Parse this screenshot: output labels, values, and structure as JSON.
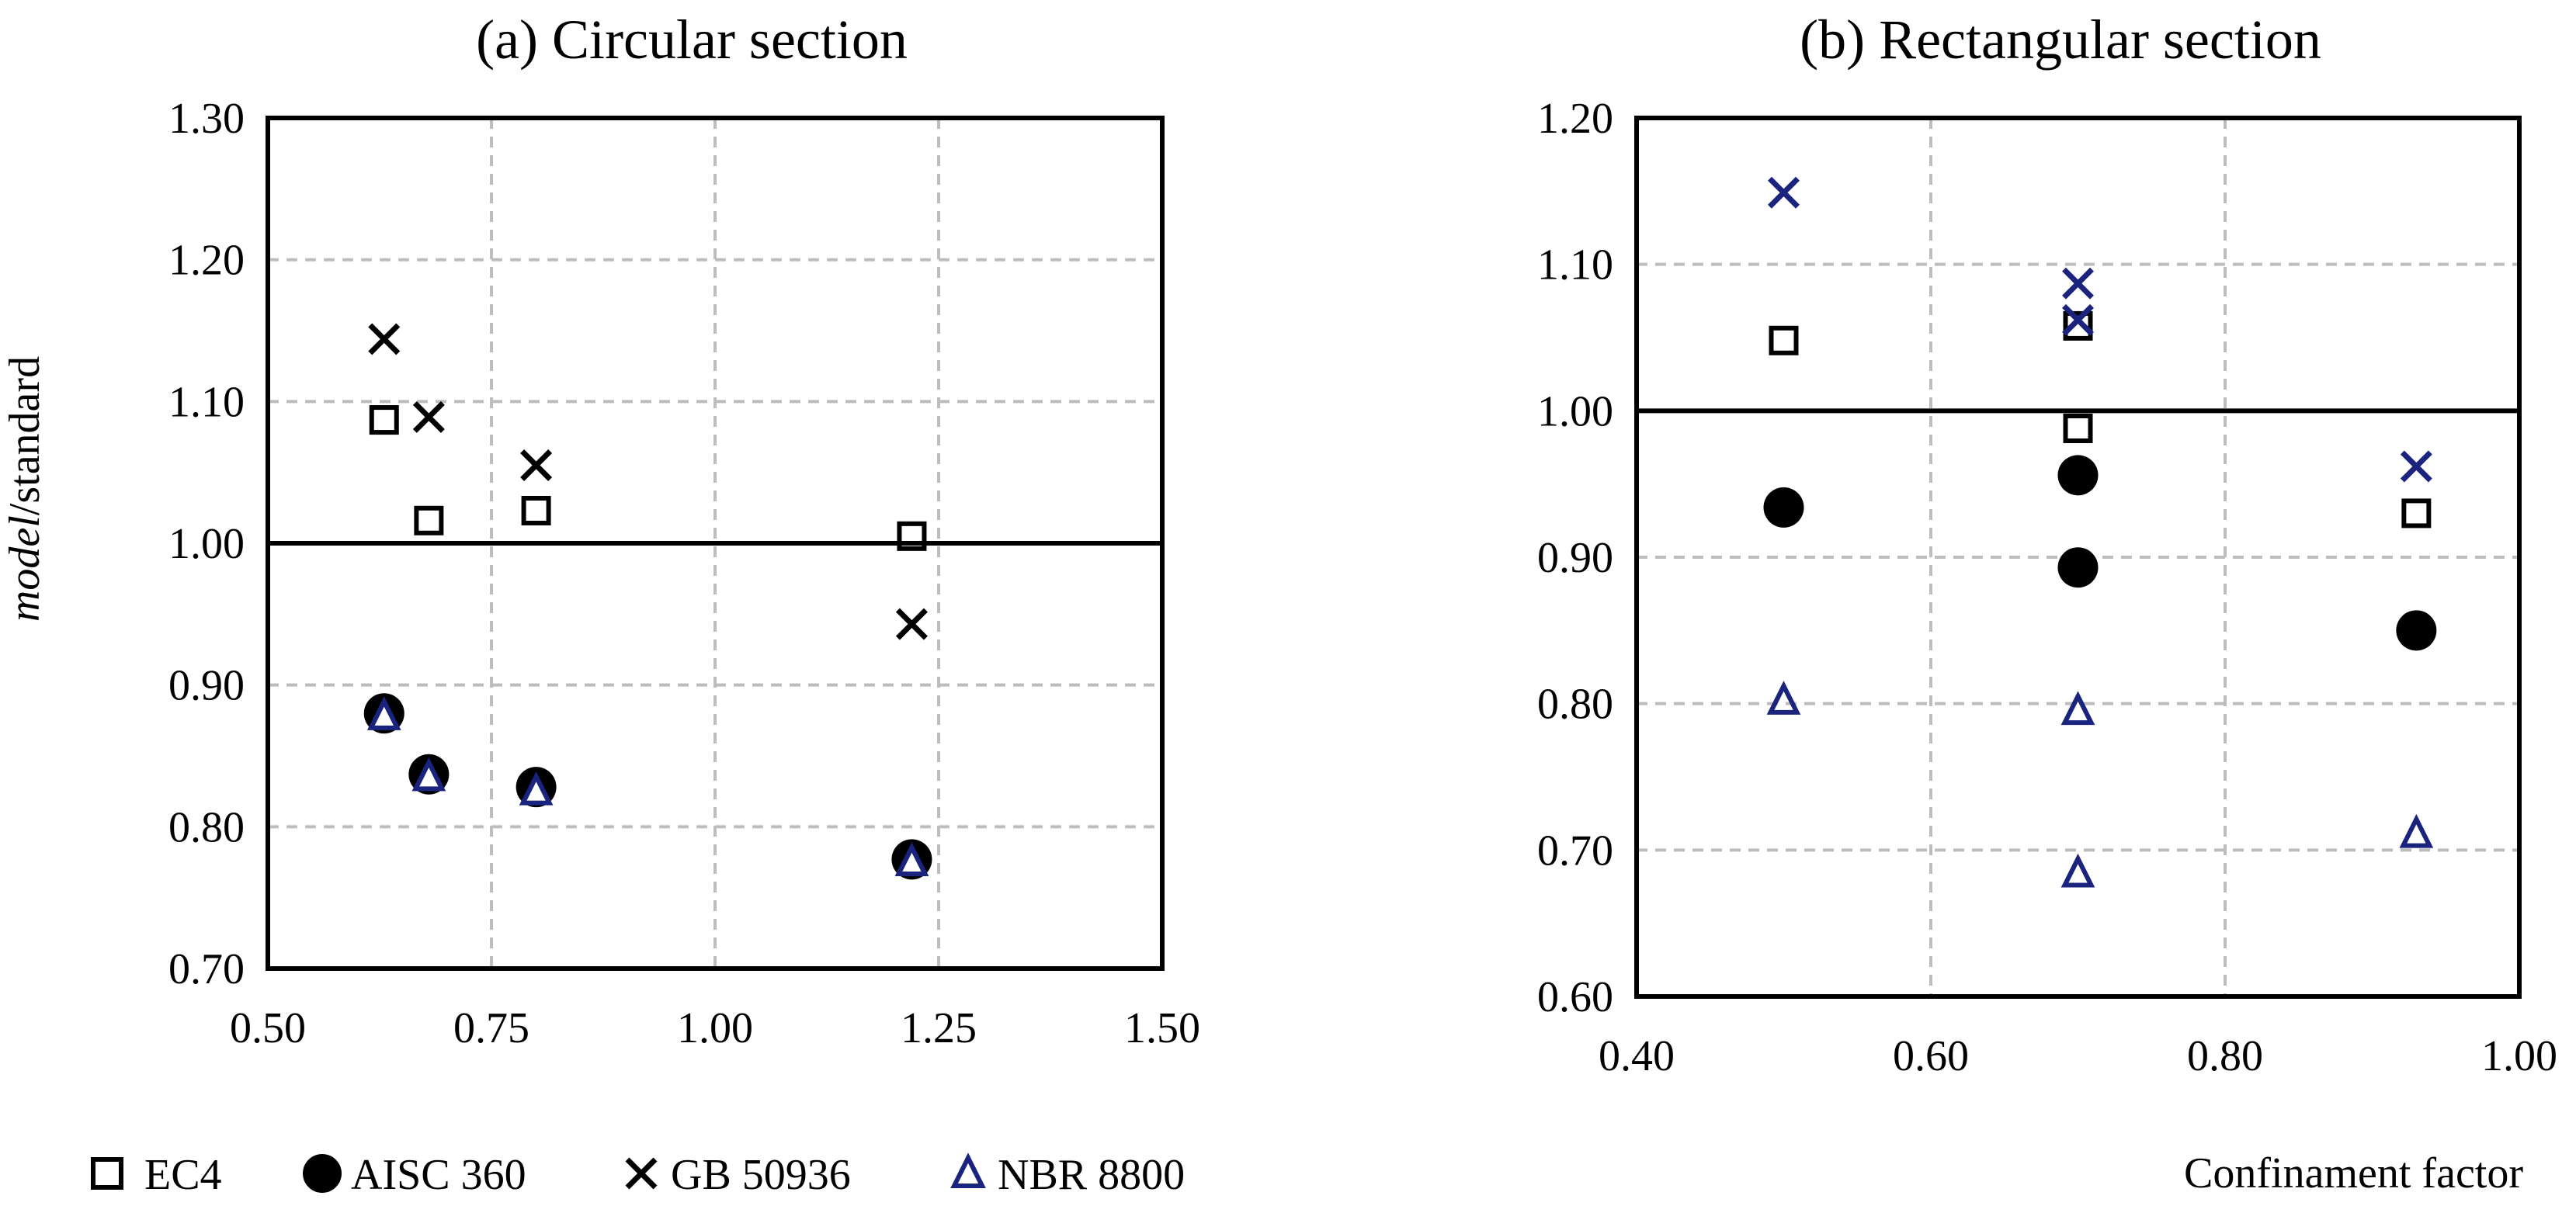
{
  "colors": {
    "ec4": "#000000",
    "aisc": "#000000",
    "gb_circ": "#000000",
    "gb_rect": "#1a237e",
    "nbr": "#1a237e",
    "grid": "#bdbdbd",
    "reference_line": "#000000"
  },
  "legend": {
    "items": [
      {
        "key": "ec4",
        "label": "EC4",
        "marker": "square-open"
      },
      {
        "key": "aisc",
        "label": "AISC 360",
        "marker": "circle-filled"
      },
      {
        "key": "gb",
        "label": "GB 50936",
        "marker": "x-cross"
      },
      {
        "key": "nbr",
        "label": "NBR 8800",
        "marker": "triangle-open"
      }
    ]
  },
  "shared_xlabel": "Confinament factor",
  "chart_data": [
    {
      "type": "scatter",
      "title": "(a) Circular section",
      "xlabel": "",
      "ylabel_italic": "model",
      "ylabel_rest": "/standard",
      "xlim": [
        0.5,
        1.5
      ],
      "ylim": [
        0.7,
        1.3
      ],
      "xticks": [
        0.5,
        0.75,
        1.0,
        1.25,
        1.5
      ],
      "xtick_labels": [
        "0.50",
        "0.75",
        "1.00",
        "1.25",
        "1.50"
      ],
      "yticks": [
        0.7,
        0.8,
        0.9,
        1.0,
        1.1,
        1.2,
        1.3
      ],
      "ytick_labels": [
        "0.70",
        "0.80",
        "0.90",
        "1.00",
        "1.10",
        "1.20",
        "1.30"
      ],
      "grid": true,
      "reference_line": 1.0,
      "series": [
        {
          "name": "EC4",
          "key": "ec4",
          "marker": "square-open",
          "x": [
            0.63,
            0.68,
            0.8,
            1.22
          ],
          "y": [
            1.087,
            1.016,
            1.023,
            1.005
          ]
        },
        {
          "name": "AISC 360",
          "key": "aisc",
          "marker": "circle-filled",
          "x": [
            0.63,
            0.68,
            0.8,
            1.22
          ],
          "y": [
            0.88,
            0.837,
            0.828,
            0.777
          ]
        },
        {
          "name": "GB 50936",
          "key": "gb_circ",
          "marker": "x-cross",
          "x": [
            0.63,
            0.68,
            0.8,
            1.22
          ],
          "y": [
            1.144,
            1.089,
            1.055,
            0.943
          ]
        },
        {
          "name": "NBR 8800",
          "key": "nbr",
          "marker": "triangle-open",
          "x": [
            0.63,
            0.68,
            0.8,
            1.22
          ],
          "y": [
            0.878,
            0.835,
            0.825,
            0.775
          ]
        }
      ]
    },
    {
      "type": "scatter",
      "title": "(b) Rectangular section",
      "xlabel": "Confinament factor",
      "ylabel": "",
      "xlim": [
        0.4,
        1.0
      ],
      "ylim": [
        0.6,
        1.2
      ],
      "xticks": [
        0.4,
        0.6,
        0.8,
        1.0
      ],
      "xtick_labels": [
        "0.40",
        "0.60",
        "0.80",
        "1.00"
      ],
      "yticks": [
        0.6,
        0.7,
        0.8,
        0.9,
        1.0,
        1.1,
        1.2
      ],
      "ytick_labels": [
        "0.60",
        "0.70",
        "0.80",
        "0.90",
        "1.00",
        "1.10",
        "1.20"
      ],
      "grid": true,
      "reference_line": 1.0,
      "series": [
        {
          "name": "EC4",
          "key": "ec4",
          "marker": "square-open",
          "x": [
            0.5,
            0.7,
            0.7,
            0.93
          ],
          "y": [
            1.048,
            1.058,
            0.988,
            0.93
          ]
        },
        {
          "name": "AISC 360",
          "key": "aisc",
          "marker": "circle-filled",
          "x": [
            0.5,
            0.7,
            0.7,
            0.93
          ],
          "y": [
            0.934,
            0.956,
            0.893,
            0.85
          ]
        },
        {
          "name": "GB 50936",
          "key": "gb_rect",
          "marker": "x-cross",
          "x": [
            0.5,
            0.7,
            0.7,
            0.93
          ],
          "y": [
            1.149,
            1.087,
            1.062,
            0.962
          ]
        },
        {
          "name": "NBR 8800",
          "key": "nbr",
          "marker": "triangle-open",
          "x": [
            0.5,
            0.7,
            0.7,
            0.93
          ],
          "y": [
            0.802,
            0.795,
            0.684,
            0.711
          ]
        }
      ]
    }
  ]
}
